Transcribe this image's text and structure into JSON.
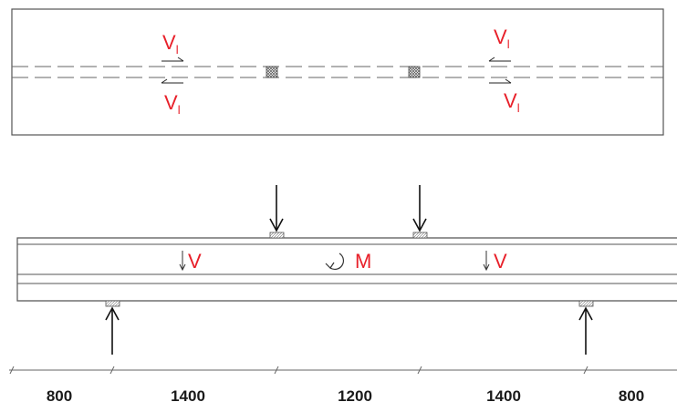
{
  "colors": {
    "line": "#555555",
    "arrow": "#111111",
    "label_red": "#e8202a",
    "dim_text": "#1a1a1a"
  },
  "plan_view": {
    "shear_labels": [
      {
        "main": "V",
        "sub": "l"
      },
      {
        "main": "V",
        "sub": "l"
      },
      {
        "main": "V",
        "sub": "l"
      },
      {
        "main": "V",
        "sub": "l"
      }
    ]
  },
  "elevation_view": {
    "shear_left": "V",
    "moment": "M",
    "shear_right": "V"
  },
  "dimensions": [
    "800",
    "1400",
    "1200",
    "1400",
    "800"
  ]
}
